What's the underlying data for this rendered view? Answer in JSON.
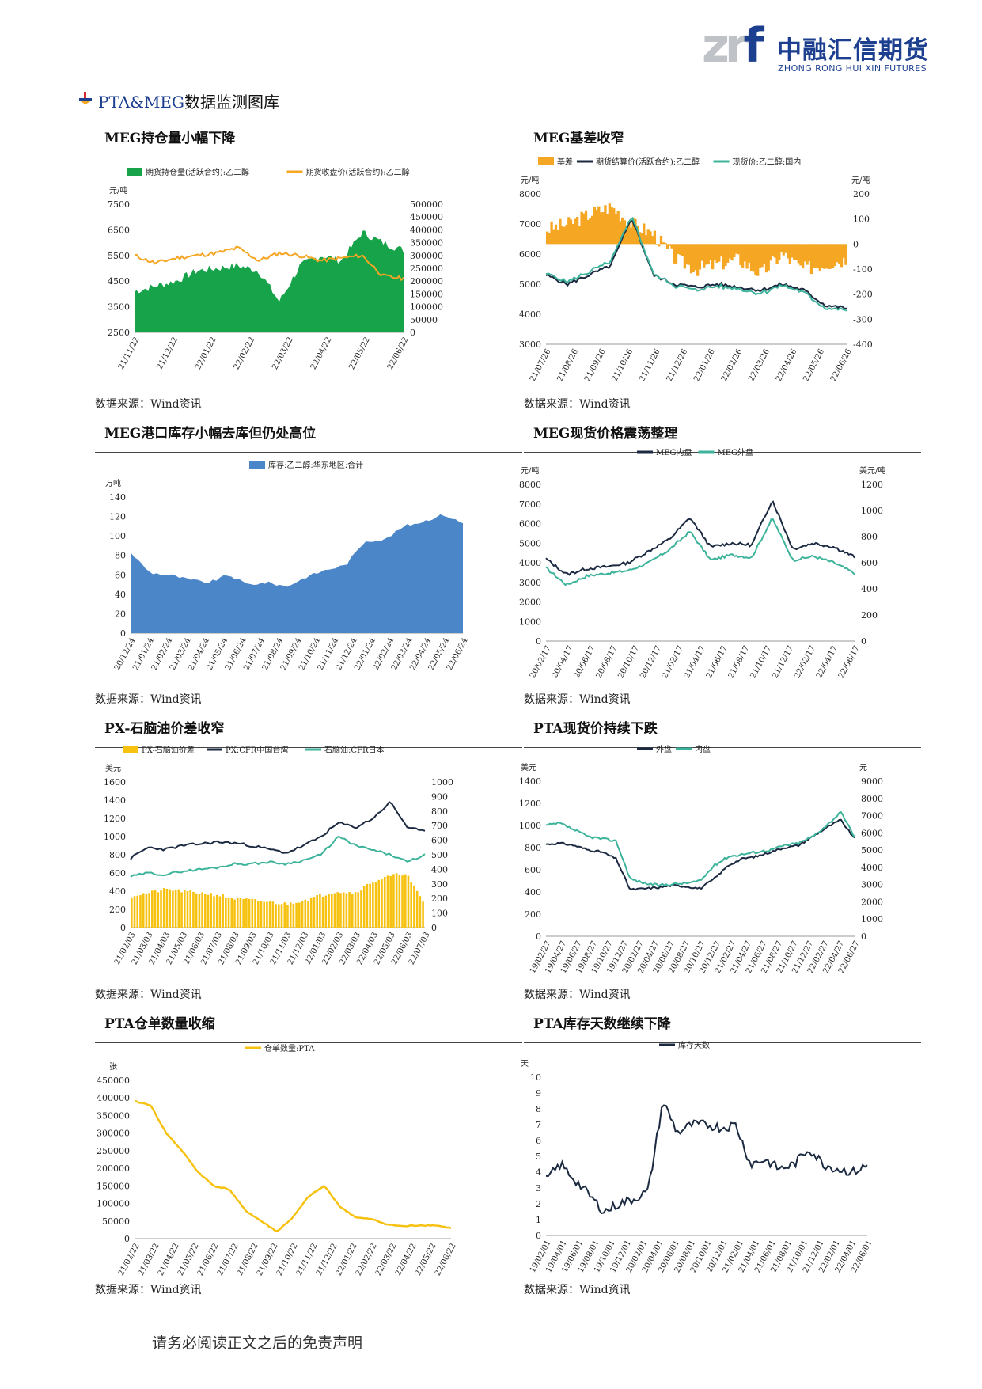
{
  "logo": {
    "mark": "zrf",
    "name_cn": "中融汇信期货",
    "name_en": "ZHONG RONG HUI XIN FUTURES"
  },
  "section": {
    "prefix": "PTA&MEG",
    "title": "数据监测图库",
    "icon": "arrow-bullet-icon"
  },
  "source_text": "数据来源：Wind资讯",
  "footer": "请务必阅读正文之后的免责声明",
  "charts": [
    {
      "heading": "MEG持仓量小幅下降",
      "type": "area+line",
      "legend": [
        "期货持仓量(活跃合约):乙二醇",
        "期货收盘价(活跃合约):乙二醇"
      ],
      "left_unit": "元/吨",
      "left_ticks": [
        "7500",
        "6500",
        "5500",
        "4500",
        "3500",
        "2500"
      ],
      "right_ticks": [
        "500000",
        "450000",
        "400000",
        "350000",
        "300000",
        "250000",
        "200000",
        "150000",
        "100000",
        "50000",
        "0"
      ],
      "x_ticks": [
        "21/11/22",
        "21/12/22",
        "22/01/22",
        "22/02/22",
        "22/03/22",
        "22/04/22",
        "22/05/22",
        "22/06/22"
      ]
    },
    {
      "heading": "MEG基差收窄",
      "type": "bar+line",
      "legend": [
        "基差",
        "期货结算价(活跃合约):乙二醇",
        "现货价:乙二醇:国内"
      ],
      "left_unit": "元/吨",
      "right_unit": "元/吨",
      "left_ticks": [
        "8000",
        "7000",
        "6000",
        "5000",
        "4000",
        "3000"
      ],
      "right_ticks": [
        "200",
        "100",
        "0",
        "-100",
        "-200",
        "-300",
        "-400"
      ],
      "x_ticks": [
        "21/07/26",
        "21/08/26",
        "21/09/26",
        "21/10/26",
        "21/11/26",
        "21/12/26",
        "22/01/26",
        "22/02/26",
        "22/03/26",
        "22/04/26",
        "22/05/26",
        "22/06/26"
      ]
    },
    {
      "heading": "MEG港口库存小幅去库但仍处高位",
      "type": "area",
      "legend": [
        "库存:乙二醇:华东地区:合计"
      ],
      "left_unit": "万吨",
      "left_ticks": [
        "140",
        "120",
        "100",
        "80",
        "60",
        "40",
        "20",
        "0"
      ],
      "x_ticks": [
        "20/12/24",
        "21/01/24",
        "21/02/24",
        "21/03/24",
        "21/04/24",
        "21/05/24",
        "21/06/24",
        "21/07/24",
        "21/08/24",
        "21/09/24",
        "21/10/24",
        "21/11/24",
        "21/12/24",
        "22/01/24",
        "22/02/24",
        "22/03/24",
        "22/04/24",
        "22/05/24",
        "22/06/24"
      ]
    },
    {
      "heading": "MEG现货价格震荡整理",
      "type": "line",
      "legend": [
        "MEG内盘",
        "MEG外盘"
      ],
      "left_unit": "元/吨",
      "right_unit": "美元/吨",
      "left_ticks": [
        "8000",
        "7000",
        "6000",
        "5000",
        "4000",
        "3000",
        "2000",
        "1000",
        "0"
      ],
      "right_ticks": [
        "1200",
        "1000",
        "800",
        "600",
        "400",
        "200",
        "0"
      ],
      "x_ticks": [
        "20/02/17",
        "20/04/17",
        "20/06/17",
        "20/08/17",
        "20/10/17",
        "20/12/17",
        "21/02/17",
        "21/04/17",
        "21/06/17",
        "21/08/17",
        "21/10/17",
        "21/12/17",
        "22/02/17",
        "22/04/17",
        "22/06/17"
      ]
    },
    {
      "heading": "PX-石脑油价差收窄",
      "type": "bar+line",
      "legend": [
        "PX-石脑油价差",
        "PX:CFR中国台湾",
        "石脑油:CFR日本"
      ],
      "left_unit": "美元",
      "left_ticks": [
        "1600",
        "1400",
        "1200",
        "1000",
        "800",
        "600",
        "400",
        "200",
        "0"
      ],
      "right_ticks": [
        "1000",
        "900",
        "800",
        "700",
        "600",
        "500",
        "400",
        "300",
        "200",
        "100",
        "0"
      ],
      "x_ticks": [
        "21/02/03",
        "21/03/03",
        "21/04/03",
        "21/05/03",
        "21/06/03",
        "21/07/03",
        "21/08/03",
        "21/09/03",
        "21/10/03",
        "21/11/03",
        "21/12/03",
        "22/01/03",
        "22/02/03",
        "22/03/03",
        "22/04/03",
        "22/05/03",
        "22/06/03",
        "22/07/03"
      ]
    },
    {
      "heading": "PTA现货价持续下跌",
      "type": "line",
      "legend": [
        "外盘",
        "内盘"
      ],
      "left_unit": "美元",
      "right_unit": "元",
      "left_ticks": [
        "1400",
        "1200",
        "1000",
        "800",
        "600",
        "400",
        "200",
        "0"
      ],
      "right_ticks": [
        "9000",
        "8000",
        "7000",
        "6000",
        "5000",
        "4000",
        "3000",
        "2000",
        "1000",
        "0"
      ],
      "x_ticks": [
        "19/02/27",
        "19/04/27",
        "19/06/27",
        "19/08/27",
        "19/10/27",
        "19/12/27",
        "20/02/27",
        "20/04/27",
        "20/06/27",
        "20/08/27",
        "20/10/27",
        "20/12/27",
        "21/02/27",
        "21/04/27",
        "21/06/27",
        "21/08/27",
        "21/10/27",
        "21/12/27",
        "22/02/27",
        "22/04/27",
        "22/06/27"
      ]
    },
    {
      "heading": "PTA仓单数量收缩",
      "type": "line",
      "legend": [
        "仓单数量:PTA"
      ],
      "left_unit": "张",
      "left_ticks": [
        "450000",
        "400000",
        "350000",
        "300000",
        "250000",
        "200000",
        "150000",
        "100000",
        "50000",
        "0"
      ],
      "x_ticks": [
        "21/02/22",
        "21/03/22",
        "21/04/22",
        "21/05/22",
        "21/06/22",
        "21/07/22",
        "21/08/22",
        "21/09/22",
        "21/10/22",
        "21/11/22",
        "21/12/22",
        "22/01/22",
        "22/02/22",
        "22/03/22",
        "22/04/22",
        "22/05/22",
        "22/06/22"
      ]
    },
    {
      "heading": "PTA库存天数继续下降",
      "type": "line",
      "legend": [
        "库存天数"
      ],
      "left_unit": "天",
      "left_ticks": [
        "10",
        "9",
        "8",
        "7",
        "6",
        "5",
        "4",
        "3",
        "2",
        "1",
        "0"
      ],
      "x_ticks": [
        "19/02/01",
        "19/04/01",
        "19/06/01",
        "19/08/01",
        "19/10/01",
        "19/12/01",
        "20/02/01",
        "20/04/01",
        "20/06/01",
        "20/08/01",
        "20/10/01",
        "20/12/01",
        "21/02/01",
        "21/04/01",
        "21/06/01",
        "21/08/01",
        "21/10/01",
        "21/12/01",
        "22/02/01",
        "22/04/01",
        "22/06/01"
      ]
    }
  ],
  "colors": {
    "green": "#16a34a",
    "orange": "#f5a623",
    "navy": "#1b2a41",
    "teal": "#3cb39a",
    "blue": "#4a86c8",
    "yellow": "#f6c10f",
    "brand": "#1d3f8f"
  }
}
